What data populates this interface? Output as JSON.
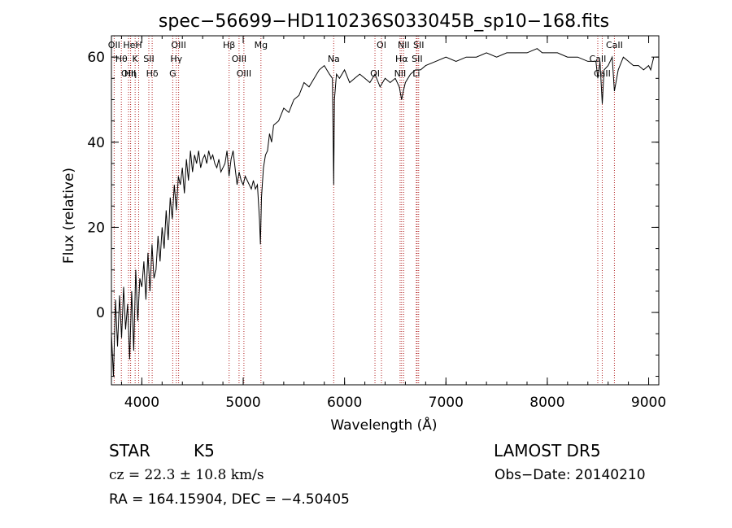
{
  "colors": {
    "line": "#000000",
    "marker": "#b22222",
    "background": "#ffffff"
  },
  "chart_data": {
    "type": "line",
    "title": "spec−56699−HD110236S033045B_sp10−168.fits",
    "xlabel": "Wavelength (Å)",
    "ylabel": "Flux (relative)",
    "xlim": [
      3700,
      9100
    ],
    "ylim": [
      -17,
      65
    ],
    "xticks": [
      4000,
      5000,
      6000,
      7000,
      8000,
      9000
    ],
    "yticks": [
      0,
      20,
      40,
      60
    ],
    "grid": false,
    "spectral_lines": [
      {
        "label": "OII",
        "wave": 3727
      },
      {
        "label": "Hθ",
        "wave": 3798
      },
      {
        "label": "OIII",
        "wave": 3869
      },
      {
        "label": "HeI",
        "wave": 3889
      },
      {
        "label": "K",
        "wave": 3934
      },
      {
        "label": "Hη",
        "wave": 3889
      },
      {
        "label": "H",
        "wave": 3969
      },
      {
        "label": "SII",
        "wave": 4069
      },
      {
        "label": "Hδ",
        "wave": 4102
      },
      {
        "label": "OIII",
        "wave": 4363
      },
      {
        "label": "Hγ",
        "wave": 4340
      },
      {
        "label": "G",
        "wave": 4305
      },
      {
        "label": "Hβ",
        "wave": 4861
      },
      {
        "label": "OIII",
        "wave": 4959
      },
      {
        "label": "OIII",
        "wave": 5007
      },
      {
        "label": "Mg",
        "wave": 5175
      },
      {
        "label": "Na",
        "wave": 5893
      },
      {
        "label": "OI",
        "wave": 6300
      },
      {
        "label": "OI",
        "wave": 6364
      },
      {
        "label": "Hα",
        "wave": 6563
      },
      {
        "label": "NII",
        "wave": 6548
      },
      {
        "label": "NII",
        "wave": 6583
      },
      {
        "label": "SII",
        "wave": 6716
      },
      {
        "label": "Li",
        "wave": 6708
      },
      {
        "label": "SII",
        "wave": 6731
      },
      {
        "label": "CaII",
        "wave": 8498
      },
      {
        "label": "CaII",
        "wave": 8542
      },
      {
        "label": "CaII",
        "wave": 8662
      }
    ],
    "series": [
      {
        "x": [
          3700,
          3720,
          3740,
          3760,
          3780,
          3800,
          3820,
          3840,
          3860,
          3880,
          3900,
          3920,
          3940,
          3960,
          3980,
          4000,
          4020,
          4040,
          4060,
          4080,
          4100,
          4120,
          4140,
          4160,
          4180,
          4200,
          4220,
          4240,
          4260,
          4280,
          4300,
          4320,
          4340,
          4360,
          4380,
          4400,
          4420,
          4440,
          4460,
          4480,
          4500,
          4520,
          4540,
          4560,
          4580,
          4600,
          4620,
          4640,
          4660,
          4680,
          4700,
          4720,
          4740,
          4760,
          4780,
          4800,
          4820,
          4840,
          4860,
          4880,
          4900,
          4920,
          4940,
          4960,
          4980,
          5000,
          5020,
          5040,
          5060,
          5080,
          5100,
          5120,
          5140,
          5160,
          5170,
          5180,
          5200,
          5220,
          5240,
          5260,
          5280,
          5300,
          5350,
          5400,
          5450,
          5500,
          5550,
          5600,
          5650,
          5700,
          5750,
          5800,
          5850,
          5880,
          5893,
          5900,
          5920,
          5950,
          6000,
          6050,
          6100,
          6150,
          6200,
          6250,
          6300,
          6350,
          6400,
          6450,
          6500,
          6540,
          6563,
          6580,
          6600,
          6650,
          6700,
          6750,
          6800,
          6900,
          7000,
          7100,
          7200,
          7300,
          7400,
          7500,
          7600,
          7700,
          7800,
          7900,
          7950,
          8000,
          8100,
          8200,
          8300,
          8400,
          8480,
          8498,
          8520,
          8542,
          8560,
          8600,
          8640,
          8662,
          8700,
          8750,
          8800,
          8850,
          8900,
          8950,
          9000,
          9020,
          9050
        ],
        "y": [
          -5,
          -15,
          3,
          -8,
          4,
          -6,
          6,
          -4,
          2,
          -11,
          5,
          -9,
          10,
          -2,
          8,
          6,
          12,
          3,
          14,
          5,
          16,
          8,
          10,
          18,
          12,
          20,
          15,
          24,
          17,
          27,
          22,
          30,
          24,
          32,
          30,
          34,
          28,
          36,
          31,
          38,
          33,
          37,
          35,
          38,
          34,
          36,
          37,
          35,
          38,
          36,
          37,
          35,
          34,
          36,
          33,
          34,
          35,
          38,
          32,
          36,
          38,
          34,
          30,
          33,
          31,
          30,
          32,
          31,
          30,
          29,
          31,
          29,
          30,
          22,
          16,
          27,
          34,
          37,
          38,
          42,
          40,
          44,
          45,
          48,
          47,
          50,
          51,
          54,
          53,
          55,
          57,
          58,
          56,
          55,
          30,
          50,
          56,
          55,
          57,
          54,
          55,
          56,
          55,
          54,
          56,
          53,
          55,
          54,
          55,
          53,
          50,
          52,
          54,
          56,
          57,
          57,
          58,
          59,
          60,
          59,
          60,
          60,
          61,
          60,
          61,
          61,
          61,
          62,
          61,
          61,
          61,
          60,
          60,
          59,
          59,
          55,
          59,
          49,
          57,
          58,
          60,
          52,
          57,
          60,
          59,
          58,
          58,
          57,
          58,
          57,
          60
        ]
      }
    ]
  },
  "footer": {
    "object_type": "STAR",
    "subclass": "K5",
    "survey": "LAMOST  DR5",
    "cz": "cz = 22.3 ± 10.8 km/s",
    "obs_date": "Obs−Date: 20140210",
    "coords": "RA = 164.15904, DEC =  −4.50405"
  }
}
